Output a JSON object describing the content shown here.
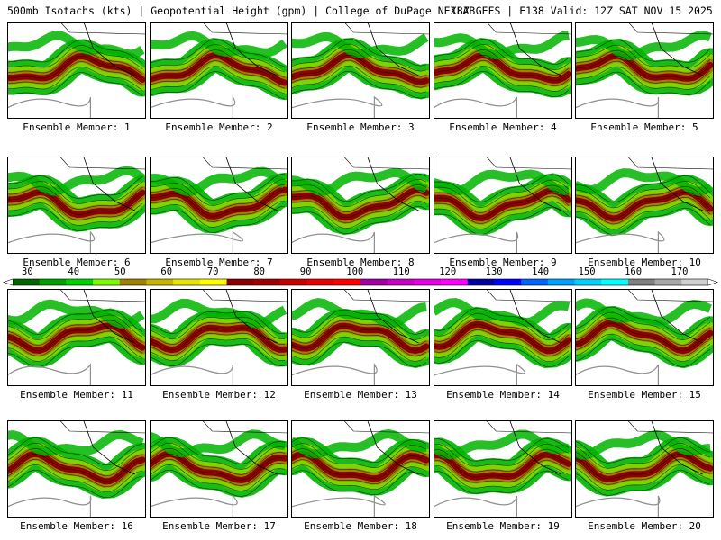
{
  "header": {
    "left": "500mb Isotachs (kts) | Geopotential Height (gpm) | College of DuPage NEXLAB",
    "right": "18Z GEFS | F138 Valid: 12Z SAT NOV 15 2025"
  },
  "colorbar": {
    "ticks": [
      "30",
      "40",
      "50",
      "60",
      "70",
      "80",
      "90",
      "100",
      "110",
      "120",
      "130",
      "140",
      "150",
      "160",
      "170"
    ],
    "colors": [
      "#006400",
      "#00a000",
      "#00d200",
      "#7cfc00",
      "#a08000",
      "#c8b400",
      "#e6e600",
      "#ffff00",
      "#8b0000",
      "#a00000",
      "#c80000",
      "#e60000",
      "#ff0000",
      "#a000a0",
      "#c800c8",
      "#e600e6",
      "#ff00ff",
      "#0000a0",
      "#0000ff",
      "#0064ff",
      "#00a0ff",
      "#00d2ff",
      "#00ffff",
      "#808080",
      "#a8a8a8",
      "#d0d0d0"
    ]
  },
  "colors": {
    "jet_core": "#8b0000",
    "jet_mid": "#a08000",
    "jet_edge": "#00b400",
    "height_contour": "#000000",
    "land_contour": "#909090"
  },
  "panels": [
    {
      "label": "Ensemble Member: 1"
    },
    {
      "label": "Ensemble Member: 2"
    },
    {
      "label": "Ensemble Member: 3"
    },
    {
      "label": "Ensemble Member: 4"
    },
    {
      "label": "Ensemble Member: 5"
    },
    {
      "label": "Ensemble Member: 6"
    },
    {
      "label": "Ensemble Member: 7"
    },
    {
      "label": "Ensemble Member: 8"
    },
    {
      "label": "Ensemble Member: 9"
    },
    {
      "label": "Ensemble Member: 10"
    },
    {
      "label": "Ensemble Member: 11"
    },
    {
      "label": "Ensemble Member: 12"
    },
    {
      "label": "Ensemble Member: 13"
    },
    {
      "label": "Ensemble Member: 14"
    },
    {
      "label": "Ensemble Member: 15"
    },
    {
      "label": "Ensemble Member: 16"
    },
    {
      "label": "Ensemble Member: 17"
    },
    {
      "label": "Ensemble Member: 18"
    },
    {
      "label": "Ensemble Member: 19"
    },
    {
      "label": "Ensemble Member: 20"
    }
  ]
}
